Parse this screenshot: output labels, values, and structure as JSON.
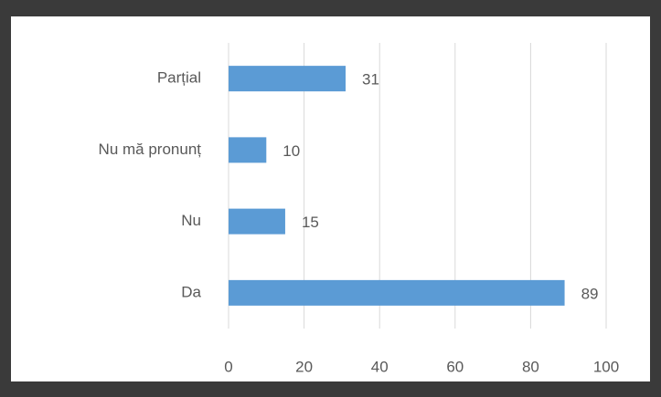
{
  "chart_data": {
    "type": "barh",
    "categories": [
      "Parțial",
      "Nu mă pronunț",
      "Nu",
      "Da"
    ],
    "values": [
      31,
      10,
      15,
      89
    ],
    "color": "#5b9bd5",
    "xlim": [
      0,
      100
    ],
    "xticks": [
      0,
      20,
      40,
      60,
      80,
      100
    ],
    "grid": true
  }
}
